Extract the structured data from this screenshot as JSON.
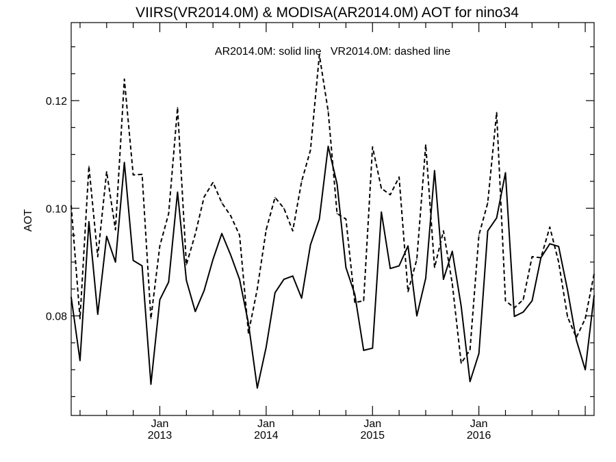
{
  "chart_data": {
    "type": "line",
    "title": "VIIRS(VR2014.0M) & MODISA(AR2014.0M)  AOT for nino34",
    "annotation": "AR2014.0M: solid line   VR2014.0M: dashed line",
    "ylabel": "AOT",
    "xlabel": "",
    "ylim": [
      0.0615,
      0.1345
    ],
    "yticks": [
      {
        "value": 0.08,
        "label": "0.08"
      },
      {
        "value": 0.1,
        "label": "0.10"
      },
      {
        "value": 0.12,
        "label": "0.12"
      }
    ],
    "yminor_step": 0.005,
    "xticks": [
      {
        "month": "Jan",
        "year": "2013"
      },
      {
        "month": "Jan",
        "year": "2014"
      },
      {
        "month": "Jan",
        "year": "2015"
      },
      {
        "month": "Jan",
        "year": "2016"
      }
    ],
    "grid": false,
    "x": [
      "2012-03",
      "2012-04",
      "2012-05",
      "2012-06",
      "2012-07",
      "2012-08",
      "2012-09",
      "2012-10",
      "2012-11",
      "2012-12",
      "2013-01",
      "2013-02",
      "2013-03",
      "2013-04",
      "2013-05",
      "2013-06",
      "2013-07",
      "2013-08",
      "2013-09",
      "2013-10",
      "2013-11",
      "2013-12",
      "2014-01",
      "2014-02",
      "2014-03",
      "2014-04",
      "2014-05",
      "2014-06",
      "2014-07",
      "2014-08",
      "2014-09",
      "2014-10",
      "2014-11",
      "2014-12",
      "2015-01",
      "2015-02",
      "2015-03",
      "2015-04",
      "2015-05",
      "2015-06",
      "2015-07",
      "2015-08",
      "2015-09",
      "2015-10",
      "2015-11",
      "2015-12",
      "2016-01",
      "2016-02",
      "2016-03",
      "2016-04",
      "2016-05",
      "2016-06",
      "2016-07",
      "2016-08",
      "2016-09",
      "2016-10",
      "2016-11",
      "2016-12",
      "2017-01",
      "2017-02"
    ],
    "series": [
      {
        "name": "AR2014.0M",
        "style": "solid",
        "values": [
          0.0835,
          0.0717,
          0.0975,
          0.0803,
          0.0948,
          0.09,
          0.1085,
          0.0903,
          0.0893,
          0.0673,
          0.083,
          0.0863,
          0.103,
          0.0866,
          0.0808,
          0.0847,
          0.0905,
          0.0953,
          0.0913,
          0.0868,
          0.0786,
          0.0666,
          0.0742,
          0.0843,
          0.0868,
          0.0874,
          0.0833,
          0.0932,
          0.098,
          0.1115,
          0.1045,
          0.089,
          0.084,
          0.0736,
          0.074,
          0.0993,
          0.0888,
          0.0893,
          0.093,
          0.08,
          0.087,
          0.107,
          0.0868,
          0.092,
          0.0818,
          0.0678,
          0.073,
          0.0958,
          0.0982,
          0.1066,
          0.0799,
          0.0807,
          0.0828,
          0.0908,
          0.0934,
          0.0929,
          0.0848,
          0.0755,
          0.07,
          0.0838
        ]
      },
      {
        "name": "VR2014.0M",
        "style": "dashed",
        "values": [
          0.1005,
          0.0795,
          0.1078,
          0.091,
          0.1068,
          0.096,
          0.124,
          0.1062,
          0.1063,
          0.0795,
          0.093,
          0.099,
          0.1187,
          0.0895,
          0.0952,
          0.1021,
          0.1048,
          0.101,
          0.0986,
          0.095,
          0.0768,
          0.085,
          0.096,
          0.102,
          0.1,
          0.0958,
          0.105,
          0.1108,
          0.1285,
          0.118,
          0.099,
          0.098,
          0.0825,
          0.0828,
          0.1114,
          0.1037,
          0.1025,
          0.1058,
          0.0845,
          0.0905,
          0.1118,
          0.089,
          0.0958,
          0.086,
          0.0712,
          0.0737,
          0.095,
          0.101,
          0.1178,
          0.0828,
          0.0815,
          0.083,
          0.091,
          0.0908,
          0.0965,
          0.09,
          0.0798,
          0.076,
          0.0795,
          0.0878
        ]
      }
    ]
  }
}
